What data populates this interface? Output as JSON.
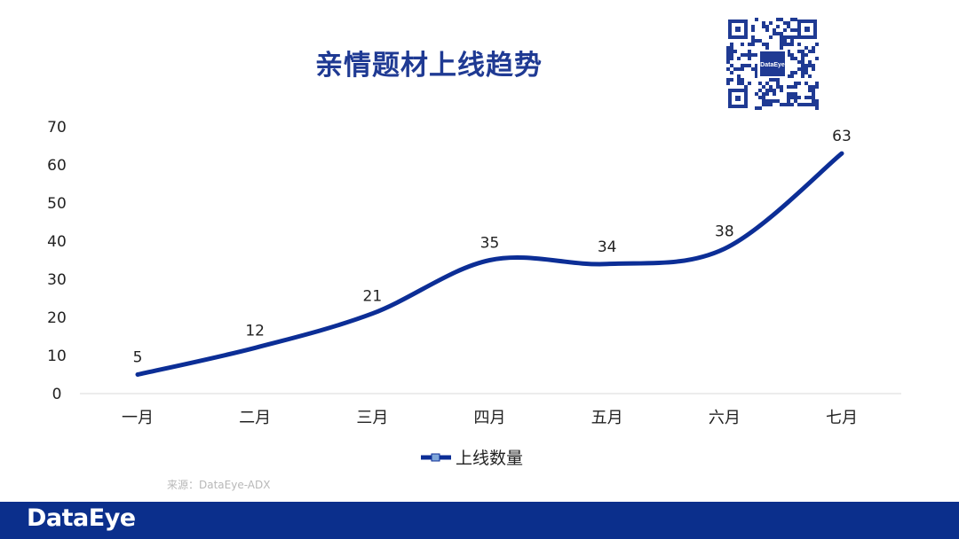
{
  "colors": {
    "accent": "#1f3a93",
    "line": "#0c2e96",
    "footer": "#0b2f8c",
    "grid": "#d9d9d9",
    "text": "#222222"
  },
  "qr": {
    "logo_text": "DataEye",
    "icon": "qr-code-icon"
  },
  "source_text": "来源：DataEye-ADX",
  "footer": {
    "brand": "DataEye"
  },
  "chart_data": {
    "type": "line",
    "title": "亲情题材上线趋势",
    "categories": [
      "一月",
      "二月",
      "三月",
      "四月",
      "五月",
      "六月",
      "七月"
    ],
    "series": [
      {
        "name": "上线数量",
        "values": [
          5,
          12,
          21,
          35,
          34,
          38,
          63
        ]
      }
    ],
    "ylim": [
      0,
      70
    ],
    "yticks": [
      0,
      10,
      20,
      30,
      40,
      50,
      60,
      70
    ],
    "data_labels": true,
    "smooth": true,
    "grid": false,
    "legend": "bottom"
  }
}
